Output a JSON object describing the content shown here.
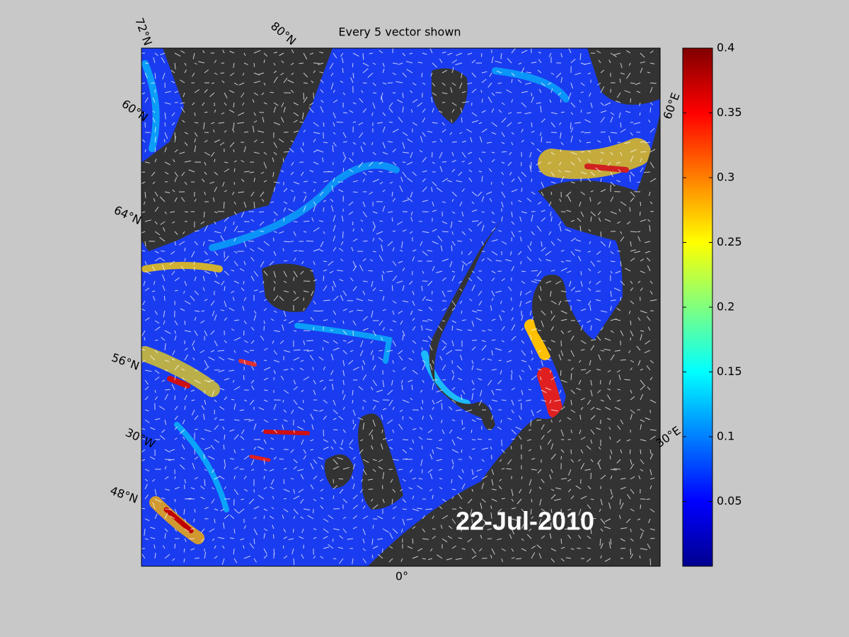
{
  "map": {
    "title": "Every 5 vector shown",
    "date": "22-Jul-2010",
    "graticule_labels": [
      "72°N",
      "80°N",
      "60°E",
      "60°N",
      "64°N",
      "56°N",
      "30°W",
      "48°N",
      "30°E",
      "0°"
    ],
    "colorbar": {
      "lim": [
        0,
        0.4
      ],
      "ticks": [
        0.05,
        0.1,
        0.15,
        0.2,
        0.25,
        0.3,
        0.35,
        0.4
      ]
    }
  }
}
